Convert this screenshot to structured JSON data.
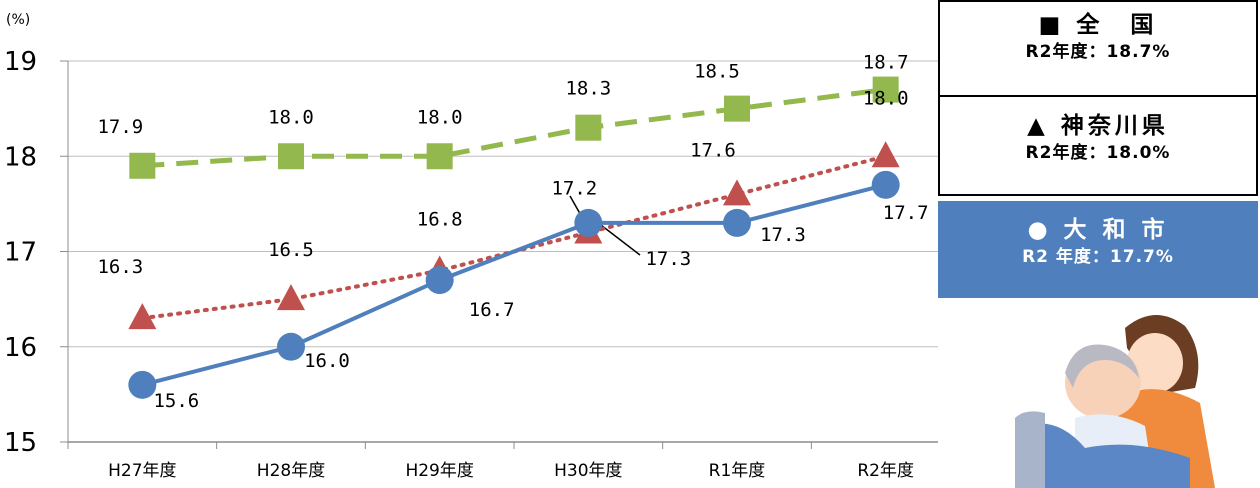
{
  "chart_data": {
    "type": "line",
    "unit": "(%)",
    "categories": [
      "H27年度",
      "H28年度",
      "H29年度",
      "H30年度",
      "R1年度",
      "R2年度"
    ],
    "ylim": [
      15,
      19
    ],
    "yticks": [
      "15",
      "16",
      "17",
      "18",
      "19"
    ],
    "grid": true,
    "series": [
      {
        "name": "全国",
        "marker": "square",
        "line": "dashed",
        "color": "#92b84e",
        "values": [
          17.9,
          18.0,
          18.0,
          18.3,
          18.5,
          18.7
        ],
        "labels": [
          "17.9",
          "18.0",
          "18.0",
          "18.3",
          "18.5",
          "18.7"
        ]
      },
      {
        "name": "神奈川県",
        "marker": "triangle",
        "line": "dotted",
        "color": "#c0504d",
        "values": [
          16.3,
          16.5,
          16.8,
          17.2,
          17.6,
          18.0
        ],
        "labels": [
          "16.3",
          "16.5",
          "16.8",
          "17.2",
          "17.6",
          "18.0"
        ]
      },
      {
        "name": "大和市",
        "marker": "circle",
        "line": "solid",
        "color": "#4f7fbc",
        "values": [
          15.6,
          16.0,
          16.7,
          17.3,
          17.3,
          17.7
        ],
        "labels": [
          "15.6",
          "16.0",
          "16.7",
          "17.3",
          "17.3",
          "17.7"
        ]
      }
    ]
  },
  "legend": {
    "national": {
      "title": "■ 全　国",
      "value": "R2年度：18.7%"
    },
    "kanagawa": {
      "title": "▲ 神奈川県",
      "value": "R2年度：18.0%"
    },
    "yamato": {
      "title": "● 大 和 市",
      "value": "R2 年度：17.7%"
    }
  },
  "colors": {
    "national": "#92b84e",
    "kanagawa": "#c0504d",
    "yamato": "#4f7fbc",
    "grid": "#bfbfbf",
    "axis": "#8c8c8c"
  },
  "illustration": {
    "icon": "caregiver-elderly-illustration"
  }
}
